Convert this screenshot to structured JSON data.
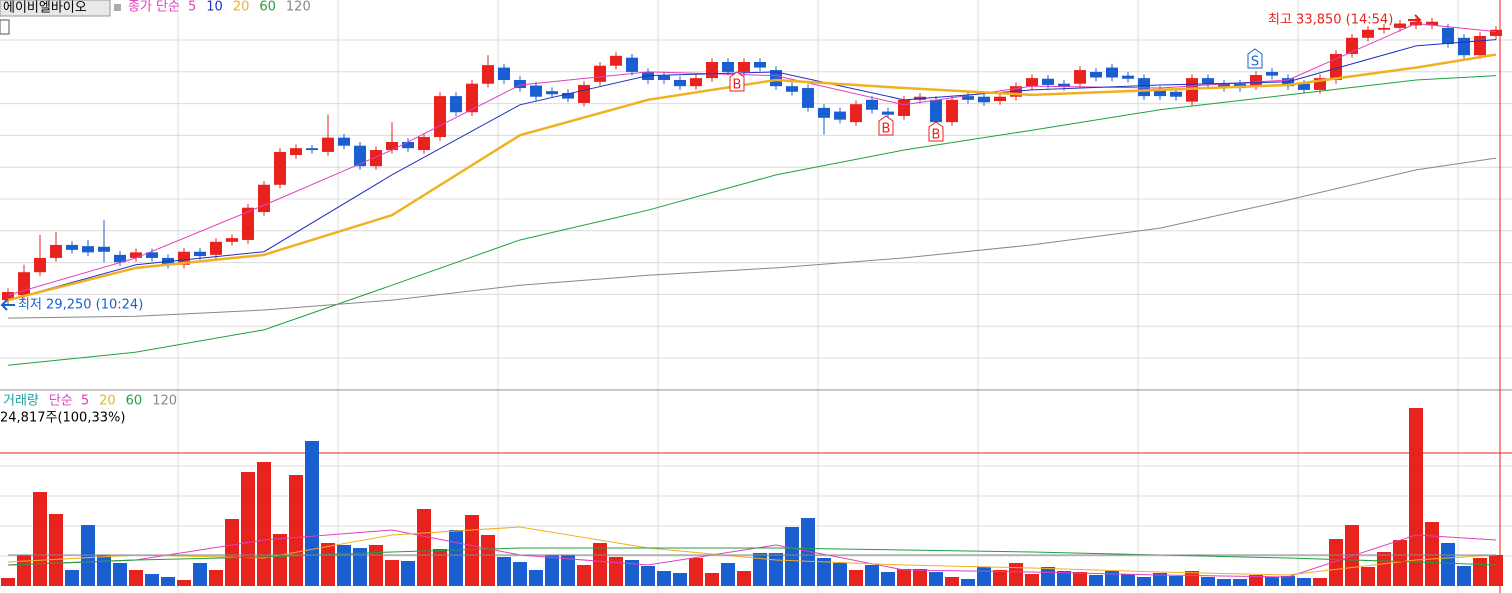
{
  "chart_data": [
    {
      "type": "candlestick",
      "title": "에이비엘바이오",
      "legend_title": "종가 단순",
      "ylim": [
        27880,
        34170
      ],
      "up_color": "#e8231e",
      "down_color": "#1a5fd0",
      "open": [
        29330,
        29410,
        29780,
        30010,
        30220,
        30200,
        30190,
        30060,
        30010,
        30100,
        30010,
        29900,
        30110,
        30060,
        30270,
        30300,
        30750,
        31190,
        31670,
        31780,
        31720,
        31950,
        31820,
        31490,
        31750,
        31880,
        31750,
        31960,
        32620,
        32360,
        32820,
        33080,
        32880,
        32790,
        32700,
        32670,
        32510,
        32850,
        33110,
        33240,
        33010,
        32950,
        32880,
        32780,
        32910,
        33170,
        33010,
        33170,
        33040,
        32780,
        32750,
        32430,
        32370,
        32200,
        32560,
        32370,
        32300,
        32560,
        32560,
        32200,
        32620,
        32610,
        32540,
        32610,
        32780,
        32900,
        32820,
        32820,
        33010,
        33080,
        32950,
        32910,
        32720,
        32690,
        32530,
        32910,
        32820,
        32820,
        32780,
        33010,
        32910,
        32820,
        32720,
        32880,
        33300,
        33560,
        33690,
        33720,
        33760,
        33760,
        33720,
        33560,
        33280,
        33590
      ],
      "close": [
        29460,
        29780,
        30010,
        30220,
        30140,
        30100,
        30110,
        29940,
        30100,
        30010,
        29900,
        30110,
        30040,
        30270,
        30330,
        30820,
        31190,
        31720,
        31780,
        31750,
        31950,
        31820,
        31490,
        31750,
        31880,
        31780,
        31960,
        32620,
        32360,
        32820,
        33120,
        32880,
        32750,
        32610,
        32650,
        32580,
        32800,
        33110,
        33270,
        33010,
        32880,
        32880,
        32780,
        32910,
        33170,
        33010,
        33170,
        33080,
        32780,
        32690,
        32430,
        32270,
        32240,
        32490,
        32400,
        32320,
        32560,
        32610,
        32200,
        32560,
        32560,
        32520,
        32610,
        32780,
        32910,
        32800,
        32770,
        33040,
        32920,
        32920,
        32900,
        32620,
        32620,
        32610,
        32910,
        32820,
        32750,
        32750,
        32960,
        32950,
        32780,
        32720,
        32910,
        33300,
        33560,
        33690,
        33720,
        33790,
        33820,
        33820,
        33460,
        33280,
        33590,
        33690
      ],
      "high": [
        29520,
        29900,
        30380,
        30430,
        30280,
        30300,
        30620,
        30120,
        30160,
        30160,
        30070,
        30170,
        30170,
        30330,
        30390,
        30880,
        31250,
        31780,
        31840,
        31830,
        32320,
        32010,
        31880,
        31810,
        32200,
        31940,
        32020,
        32680,
        32680,
        32880,
        33280,
        33140,
        32940,
        32850,
        32760,
        32730,
        32860,
        33170,
        33330,
        33300,
        33070,
        33010,
        32940,
        32970,
        33230,
        33230,
        33230,
        33230,
        33100,
        32840,
        32810,
        32490,
        32430,
        32550,
        32620,
        32430,
        32620,
        32670,
        32620,
        32620,
        32680,
        32670,
        32670,
        32840,
        32970,
        32960,
        32880,
        33100,
        33070,
        33140,
        33010,
        32970,
        32780,
        32750,
        32970,
        32970,
        32880,
        32880,
        33020,
        33070,
        32970,
        32880,
        32970,
        33360,
        33620,
        33750,
        33780,
        33850,
        33880,
        33880,
        33780,
        33620,
        33650,
        33750
      ],
      "low": [
        29250,
        29350,
        29720,
        29950,
        30080,
        30040,
        29940,
        29880,
        29950,
        29950,
        29840,
        29840,
        29980,
        30000,
        30210,
        30240,
        30690,
        31130,
        31610,
        31690,
        31660,
        31760,
        31430,
        31430,
        31690,
        31720,
        31690,
        31900,
        32300,
        32300,
        32760,
        32820,
        32690,
        32550,
        32590,
        32520,
        32450,
        32790,
        33050,
        32950,
        32820,
        32820,
        32720,
        32720,
        32850,
        32950,
        32950,
        33020,
        32720,
        32630,
        32370,
        32000,
        32180,
        32140,
        32340,
        32260,
        32240,
        32500,
        32140,
        32140,
        32500,
        32460,
        32480,
        32550,
        32720,
        32740,
        32710,
        32760,
        32860,
        32860,
        32840,
        32560,
        32560,
        32550,
        32470,
        32760,
        32690,
        32690,
        32720,
        32890,
        32720,
        32660,
        32660,
        32820,
        33240,
        33500,
        33630,
        33660,
        33700,
        33700,
        33400,
        33220,
        33220,
        33530
      ],
      "ma_x": [
        0,
        8,
        16,
        24,
        32,
        40,
        48,
        56,
        64,
        72,
        80,
        88,
        93
      ],
      "series": [
        {
          "name": "5",
          "color": "#e040c0",
          "width": 1,
          "values": [
            29410,
            30010,
            30860,
            31750,
            32800,
            33010,
            32950,
            32480,
            32780,
            32750,
            32880,
            33790,
            33660
          ]
        },
        {
          "name": "10",
          "color": "#2030c0",
          "width": 1,
          "values": [
            29330,
            29900,
            30110,
            31350,
            32480,
            32950,
            33010,
            32560,
            32720,
            32800,
            32850,
            33430,
            33530
          ]
        },
        {
          "name": "20",
          "color": "#f0b020",
          "width": 2.5,
          "values": [
            29330,
            29850,
            30060,
            30700,
            31990,
            32560,
            32880,
            32750,
            32640,
            32720,
            32800,
            33080,
            33290
          ]
        },
        {
          "name": "60",
          "color": "#20a040",
          "width": 1,
          "values": [
            28280,
            28490,
            28850,
            29570,
            30300,
            30780,
            31350,
            31750,
            32070,
            32400,
            32640,
            32880,
            32950
          ]
        },
        {
          "name": "120",
          "color": "#888888",
          "width": 1,
          "values": [
            29040,
            29070,
            29170,
            29330,
            29570,
            29730,
            29850,
            30010,
            30220,
            30490,
            30945,
            31430,
            31620
          ]
        }
      ],
      "annotations": [
        "최고 33,850 (14:54)",
        "최저 29,250 (10:24)"
      ],
      "signals": [
        "B",
        "B",
        "B",
        "S"
      ]
    },
    {
      "type": "bar",
      "title": "거래량",
      "legend_title": "단순",
      "ylim": [
        0,
        152800
      ],
      "value_label": "24,817주(100,33%)",
      "values": [
        6400,
        24800,
        75200,
        57600,
        12800,
        48800,
        24800,
        18400,
        12800,
        9600,
        7200,
        4800,
        18400,
        12800,
        53600,
        91200,
        99200,
        41600,
        88800,
        116000,
        34400,
        32800,
        30400,
        32800,
        20800,
        20000,
        61600,
        29600,
        44800,
        56800,
        40800,
        23200,
        19200,
        12800,
        24800,
        24800,
        16800,
        34400,
        23200,
        20800,
        16000,
        12000,
        10400,
        22400,
        10400,
        18400,
        12000,
        26400,
        26400,
        47200,
        54400,
        22400,
        18400,
        12800,
        16800,
        11200,
        13600,
        13600,
        11200,
        7200,
        5600,
        15200,
        12800,
        18400,
        9600,
        15200,
        12000,
        11200,
        8800,
        12000,
        9600,
        7200,
        10400,
        8000,
        12000,
        7200,
        5600,
        5600,
        8800,
        7200,
        8000,
        6400,
        6400,
        37600,
        48800,
        15200,
        27200,
        36800,
        142400,
        51200,
        34400,
        16000,
        22400,
        24800
      ],
      "ma_x": [
        0,
        8,
        16,
        24,
        32,
        40,
        48,
        56,
        64,
        72,
        80,
        88,
        93
      ],
      "series": [
        {
          "name": "5",
          "color": "#e040c0",
          "values": [
            16800,
            20800,
            36800,
            44800,
            24800,
            16800,
            32800,
            12800,
            11200,
            8800,
            7200,
            40800,
            36800
          ]
        },
        {
          "name": "20",
          "color": "#f0b020",
          "values": [
            19200,
            24800,
            22400,
            40800,
            47200,
            30400,
            20800,
            16800,
            14400,
            11200,
            8800,
            20800,
            24800
          ]
        },
        {
          "name": "60",
          "color": "#20a040",
          "values": [
            16800,
            20800,
            23200,
            27200,
            30400,
            30400,
            30400,
            28800,
            27200,
            24800,
            22400,
            19200,
            16800
          ]
        },
        {
          "name": "120",
          "color": "#888888",
          "values": [
            24800,
            24800,
            24800,
            24800,
            24800,
            24800,
            24800,
            24800,
            24800,
            24800,
            24800,
            24800,
            24800
          ]
        }
      ]
    }
  ]
}
